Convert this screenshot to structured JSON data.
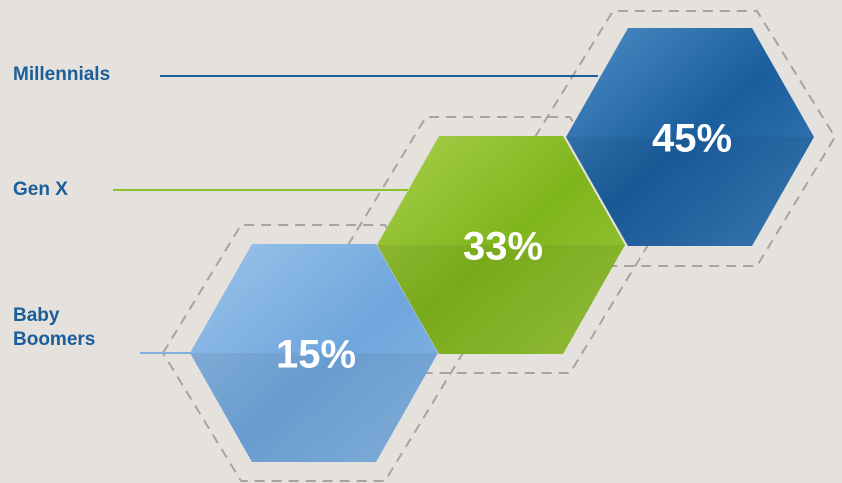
{
  "chart_data": {
    "type": "hexagon-infographic",
    "categories": [
      "Baby Boomers",
      "Gen X",
      "Millennials"
    ],
    "values": [
      15,
      33,
      45
    ],
    "value_labels": [
      "15%",
      "33%",
      "45%"
    ],
    "unit": "%",
    "colors": {
      "Baby Boomers": "#7fb0df",
      "Gen X": "#8cc12f",
      "Millennials": "#1f64a3",
      "label_text": "#1a5e9a",
      "background": "#e5e1dc"
    }
  }
}
